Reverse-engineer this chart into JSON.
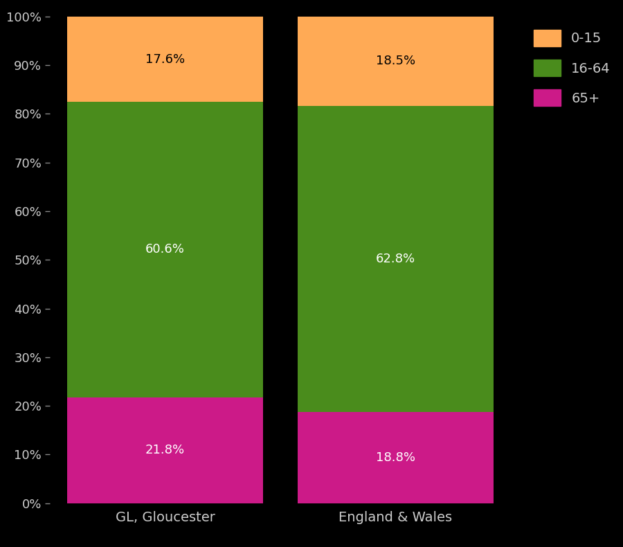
{
  "categories": [
    "GL, Gloucester",
    "England & Wales"
  ],
  "segments": {
    "65+": [
      21.8,
      18.8
    ],
    "16-64": [
      60.6,
      62.8
    ],
    "0-15": [
      17.6,
      18.5
    ]
  },
  "colors": {
    "0-15": "#FFAA55",
    "16-64": "#4A8C1C",
    "65+": "#CC1A88"
  },
  "background_color": "#000000",
  "text_color": "#CCCCCC",
  "yticks": [
    0,
    10,
    20,
    30,
    40,
    50,
    60,
    70,
    80,
    90,
    100
  ],
  "ylim": [
    0,
    100
  ],
  "label_color_0-15": "#000000",
  "label_color_16-64": "#FFFFFF",
  "label_color_65+": "#FFFFFF",
  "label_fontsize": 13,
  "tick_fontsize": 13,
  "xtick_fontsize": 14,
  "legend_fontsize": 14
}
